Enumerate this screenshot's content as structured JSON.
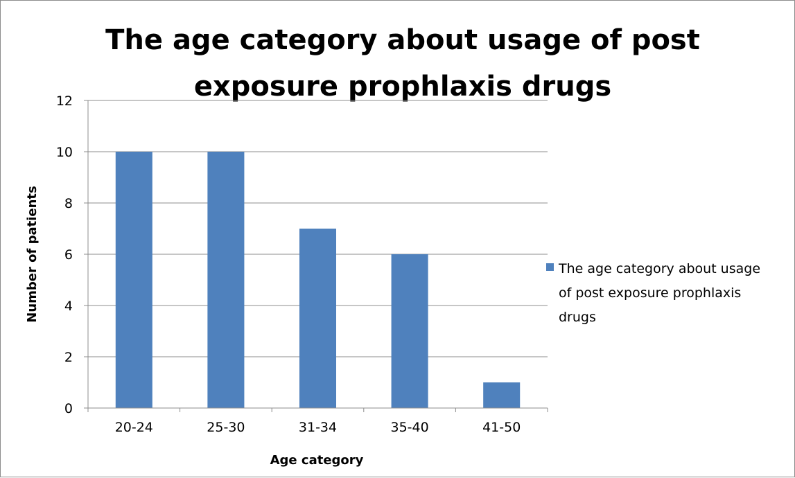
{
  "chart_data": {
    "type": "bar",
    "title": "The age category about usage of post exposure prophlaxis drugs",
    "title_lines": [
      "The age category about usage of post",
      "exposure prophlaxis drugs"
    ],
    "xlabel": "Age category",
    "ylabel": "Number of patients",
    "categories": [
      "20-24",
      "25-30",
      "31-34",
      "35-40",
      "41-50"
    ],
    "series": [
      {
        "name": "The age category about usage of post exposure prophlaxis drugs",
        "values": [
          10,
          10,
          7,
          6,
          1
        ],
        "color": "#4f81bd"
      }
    ],
    "legend_lines": [
      "The age category about usage",
      "of post exposure prophlaxis",
      "drugs"
    ],
    "ylim": [
      0,
      12
    ],
    "yticks": [
      0,
      2,
      4,
      6,
      8,
      10,
      12
    ],
    "grid": true,
    "legend_position": "right"
  }
}
